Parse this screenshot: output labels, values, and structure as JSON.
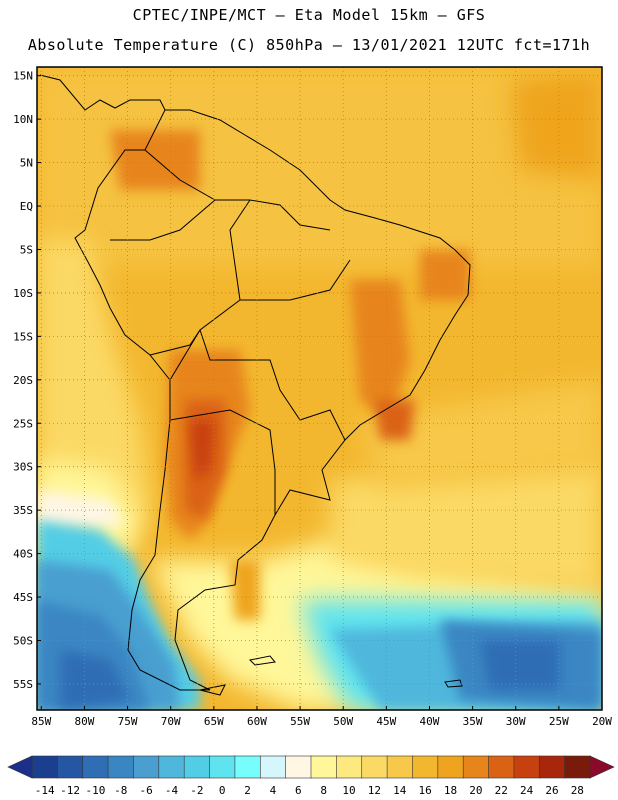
{
  "header": {
    "line1": "CPTEC/INPE/MCT —  Eta Model 15km — GFS",
    "line2": "Absolute Temperature (C) 850hPa — 13/01/2021 12UTC fct=171h"
  },
  "map": {
    "lat_labels": [
      "15N",
      "10N",
      "5N",
      "EQ",
      "5S",
      "10S",
      "15S",
      "20S",
      "25S",
      "30S",
      "35S",
      "40S",
      "45S",
      "50S",
      "55S"
    ],
    "lat_values": [
      15,
      10,
      5,
      0,
      -5,
      -10,
      -15,
      -20,
      -25,
      -30,
      -35,
      -40,
      -45,
      -50,
      -55
    ],
    "lon_labels": [
      "85W",
      "80W",
      "75W",
      "70W",
      "65W",
      "60W",
      "55W",
      "50W",
      "45W",
      "40W",
      "35W",
      "30W",
      "25W",
      "20W"
    ],
    "lon_values": [
      -85,
      -80,
      -75,
      -70,
      -65,
      -60,
      -55,
      -50,
      -45,
      -40,
      -35,
      -30,
      -25,
      -20
    ],
    "domain": {
      "lon_min": -85.5,
      "lon_max": -20,
      "lat_min": -58,
      "lat_max": 16
    }
  },
  "colorbar": {
    "labels": [
      "-14",
      "-12",
      "-10",
      "-8",
      "-6",
      "-4",
      "-2",
      "0",
      "2",
      "4",
      "6",
      "8",
      "10",
      "12",
      "14",
      "16",
      "18",
      "20",
      "22",
      "24",
      "26",
      "28"
    ],
    "colors": [
      "#1b3f8f",
      "#2456a3",
      "#2f6db4",
      "#3a86c3",
      "#4a9fd0",
      "#4fb7dc",
      "#52cde6",
      "#5ee3ef",
      "#78fdfd",
      "#d5f6fb",
      "#fff6e4",
      "#fff79a",
      "#fce97f",
      "#fbd965",
      "#f7c84a",
      "#f3b72f",
      "#efa41f",
      "#e7851a",
      "#da6214",
      "#c7400f",
      "#a8260c",
      "#7a1a0a"
    ],
    "under_color": "#1c2f8a",
    "over_color": "#8a0a2a"
  }
}
